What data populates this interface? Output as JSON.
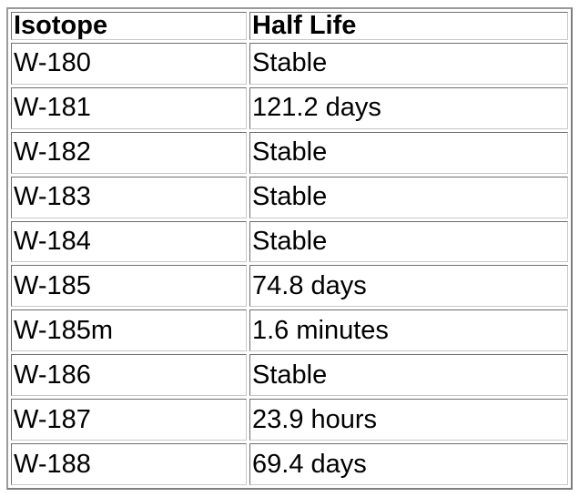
{
  "table": {
    "headers": [
      "Isotope",
      "Half Life"
    ],
    "rows": [
      [
        "W-180",
        "Stable"
      ],
      [
        "W-181",
        "121.2 days"
      ],
      [
        "W-182",
        "Stable"
      ],
      [
        "W-183",
        "Stable"
      ],
      [
        "W-184",
        "Stable"
      ],
      [
        "W-185",
        "74.8 days"
      ],
      [
        "W-185m",
        "1.6 minutes"
      ],
      [
        "W-186",
        "Stable"
      ],
      [
        "W-187",
        "23.9 hours"
      ],
      [
        "W-188",
        "69.4 days"
      ]
    ]
  }
}
